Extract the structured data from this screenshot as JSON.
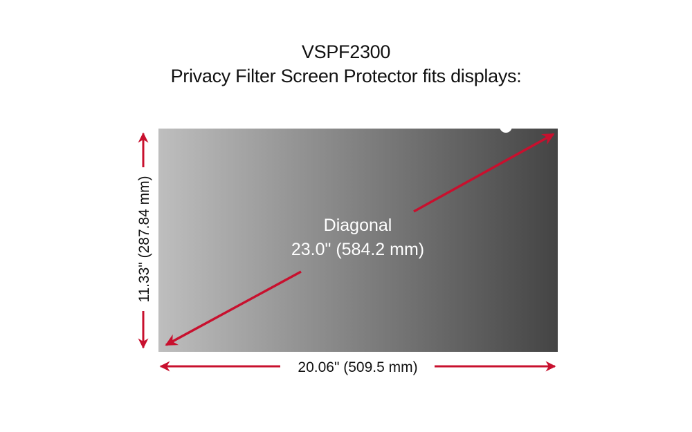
{
  "header": {
    "model": "VSPF2300",
    "subtitle": "Privacy Filter Screen Protector fits displays:"
  },
  "diagram": {
    "diagonal_label": "Diagonal",
    "diagonal_value": "23.0\" (584.2 mm)",
    "width_value": "20.06\" (509.5 mm)",
    "height_value": "11.33\" (287.84 mm)",
    "colors": {
      "arrow": "#c8102e",
      "panel_light": "#bdbdbd",
      "panel_dark": "#454545"
    }
  }
}
